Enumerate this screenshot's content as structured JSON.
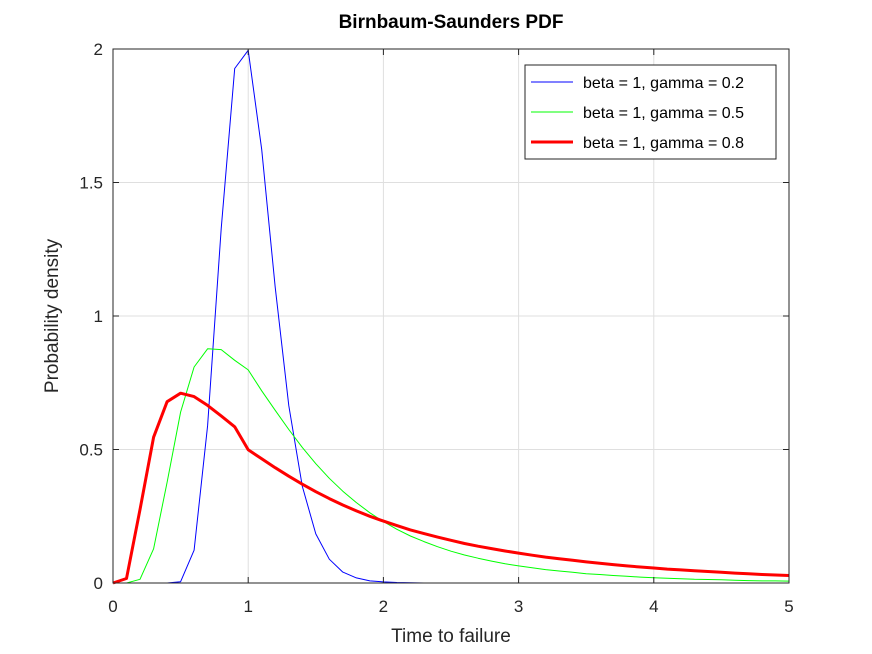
{
  "chart_data": {
    "type": "line",
    "title": "Birnbaum-Saunders PDF",
    "xlabel": "Time to failure",
    "ylabel": "Probability density",
    "xlim": [
      0,
      5
    ],
    "ylim": [
      0,
      2
    ],
    "xticks": [
      "0",
      "1",
      "2",
      "3",
      "4",
      "5"
    ],
    "yticks": [
      "0",
      "0.5",
      "1",
      "1.5",
      "2"
    ],
    "grid": true,
    "legend_position": "top-right",
    "x": [
      0,
      0.1,
      0.2,
      0.3,
      0.4,
      0.5,
      0.6,
      0.7,
      0.8,
      0.9,
      1.0,
      1.1,
      1.2,
      1.3,
      1.4,
      1.5,
      1.6,
      1.7,
      1.8,
      1.9,
      2.0,
      2.1,
      2.2,
      2.3,
      2.4,
      2.5,
      2.6,
      2.7,
      2.8,
      2.9,
      3.0,
      3.1,
      3.2,
      3.3,
      3.4,
      3.5,
      3.6,
      3.7,
      3.8,
      3.9,
      4.0,
      4.1,
      4.2,
      4.3,
      4.4,
      4.5,
      4.6,
      4.7,
      4.8,
      4.9,
      5.0
    ],
    "series": [
      {
        "name": "beta = 1, gamma = 0.2",
        "color": "#0000ff",
        "line_width": 1,
        "values": [
          0,
          0,
          0,
          0,
          0,
          0.005,
          0.123,
          0.589,
          1.327,
          1.927,
          1.995,
          1.624,
          1.108,
          0.664,
          0.362,
          0.184,
          0.089,
          0.041,
          0.019,
          0.008,
          0.004,
          0.002,
          0.001,
          0,
          0,
          0,
          0,
          0,
          0,
          0,
          0,
          0,
          0,
          0,
          0,
          0,
          0,
          0,
          0,
          0,
          0,
          0,
          0,
          0,
          0,
          0,
          0,
          0,
          0,
          0,
          0
        ]
      },
      {
        "name": "beta = 1, gamma = 0.5",
        "color": "#00ff00",
        "line_width": 1,
        "values": [
          0,
          0,
          0.014,
          0.128,
          0.377,
          0.64,
          0.809,
          0.877,
          0.874,
          0.834,
          0.798,
          0.72,
          0.647,
          0.575,
          0.508,
          0.447,
          0.392,
          0.344,
          0.301,
          0.263,
          0.23,
          0.201,
          0.176,
          0.155,
          0.136,
          0.119,
          0.105,
          0.093,
          0.082,
          0.072,
          0.064,
          0.057,
          0.05,
          0.045,
          0.04,
          0.035,
          0.032,
          0.028,
          0.025,
          0.022,
          0.02,
          0.018,
          0.016,
          0.014,
          0.013,
          0.012,
          0.01,
          0.009,
          0.008,
          0.008,
          0.007
        ]
      },
      {
        "name": "beta = 1, gamma = 0.8",
        "color": "#ff0000",
        "line_width": 3,
        "values": [
          0,
          0.017,
          0.275,
          0.546,
          0.679,
          0.711,
          0.698,
          0.665,
          0.626,
          0.585,
          0.499,
          0.465,
          0.432,
          0.4,
          0.37,
          0.342,
          0.316,
          0.292,
          0.27,
          0.25,
          0.232,
          0.215,
          0.199,
          0.185,
          0.172,
          0.16,
          0.148,
          0.138,
          0.129,
          0.12,
          0.112,
          0.104,
          0.097,
          0.091,
          0.085,
          0.079,
          0.074,
          0.069,
          0.064,
          0.06,
          0.056,
          0.052,
          0.049,
          0.046,
          0.043,
          0.04,
          0.037,
          0.035,
          0.032,
          0.03,
          0.028
        ]
      }
    ]
  }
}
